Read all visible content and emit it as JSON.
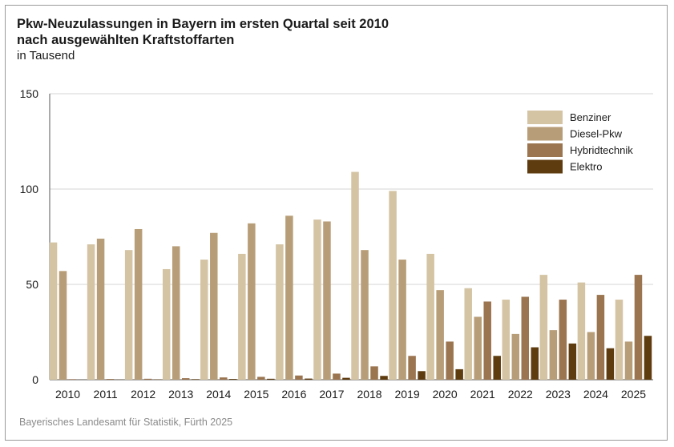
{
  "chart_data": {
    "type": "bar",
    "title": "Pkw-Neuzulassungen in Bayern im ersten Quartal seit 2010",
    "title_line2": "nach ausgewählten Kraftstoffarten",
    "subtitle": "in Tausend",
    "source": "Bayerisches Landesamt für Statistik, Fürth 2025",
    "ylim": [
      0,
      150
    ],
    "yticks": [
      0,
      50,
      100,
      150
    ],
    "grid": true,
    "legend_position": "top-right",
    "categories": [
      "2010",
      "2011",
      "2012",
      "2013",
      "2014",
      "2015",
      "2016",
      "2017",
      "2018",
      "2019",
      "2020",
      "2021",
      "2022",
      "2023",
      "2024",
      "2025"
    ],
    "series": [
      {
        "name": "Benziner",
        "color": "#d4c4a4",
        "values": [
          72,
          71,
          68,
          58,
          63,
          66,
          71,
          84,
          109,
          99,
          66,
          48,
          42,
          55,
          51,
          42
        ]
      },
      {
        "name": "Diesel-Pkw",
        "color": "#b89e78",
        "values": [
          57,
          74,
          79,
          70,
          77,
          82,
          86,
          83,
          68,
          63,
          47,
          33,
          24,
          26,
          25,
          20
        ]
      },
      {
        "name": "Hybridtechnik",
        "color": "#9b7550",
        "values": [
          0.3,
          0.4,
          0.5,
          0.8,
          1.2,
          1.5,
          2.2,
          3.2,
          7,
          12.5,
          20,
          41,
          43.5,
          42,
          44.5,
          55
        ]
      },
      {
        "name": "Elektro",
        "color": "#5e3c10",
        "values": [
          0.05,
          0.1,
          0.2,
          0.3,
          0.4,
          0.5,
          0.6,
          1,
          2,
          4.5,
          5.5,
          12.5,
          17,
          19,
          16.5,
          23
        ]
      }
    ]
  }
}
